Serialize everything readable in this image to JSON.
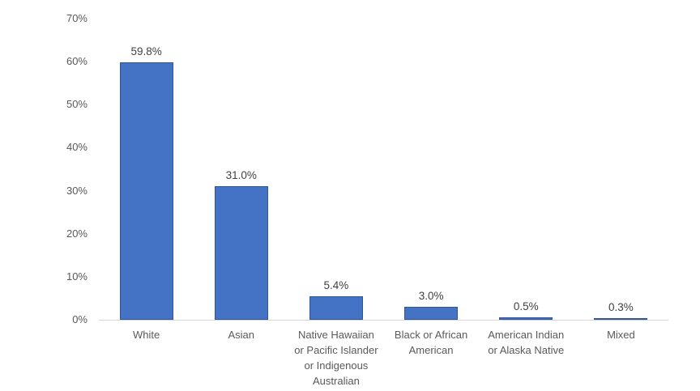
{
  "chart_data": {
    "type": "bar",
    "title": "",
    "xlabel": "",
    "ylabel": "",
    "categories": [
      "White",
      "Asian",
      "Native Hawaiian or Pacific Islander or Indigenous Australian",
      "Black or African American",
      "American Indian or Alaska Native",
      "Mixed"
    ],
    "category_display_lines": [
      [
        "White"
      ],
      [
        "Asian"
      ],
      [
        "Native Hawaiian",
        "or Pacific Islander",
        "or Indigenous",
        "Australian"
      ],
      [
        "Black or African",
        "American"
      ],
      [
        "American Indian",
        "or Alaska Native"
      ],
      [
        "Mixed"
      ]
    ],
    "values": [
      59.8,
      31.0,
      5.4,
      3.0,
      0.5,
      0.3
    ],
    "value_labels": [
      "59.8%",
      "31.0%",
      "5.4%",
      "3.0%",
      "0.5%",
      "0.3%"
    ],
    "ylim": [
      0,
      70
    ],
    "y_tick_step": 10,
    "y_tick_labels": [
      "0%",
      "10%",
      "20%",
      "30%",
      "40%",
      "50%",
      "60%",
      "70%"
    ],
    "grid": false,
    "legend_position": "none",
    "colors": {
      "bar_fill": "#4472C4",
      "bar_border": "#2F5597",
      "axis_line": "#D6D6D6",
      "tick_text": "#595959",
      "value_text": "#404040",
      "category_text": "#595959",
      "background": "#FFFFFF"
    }
  }
}
